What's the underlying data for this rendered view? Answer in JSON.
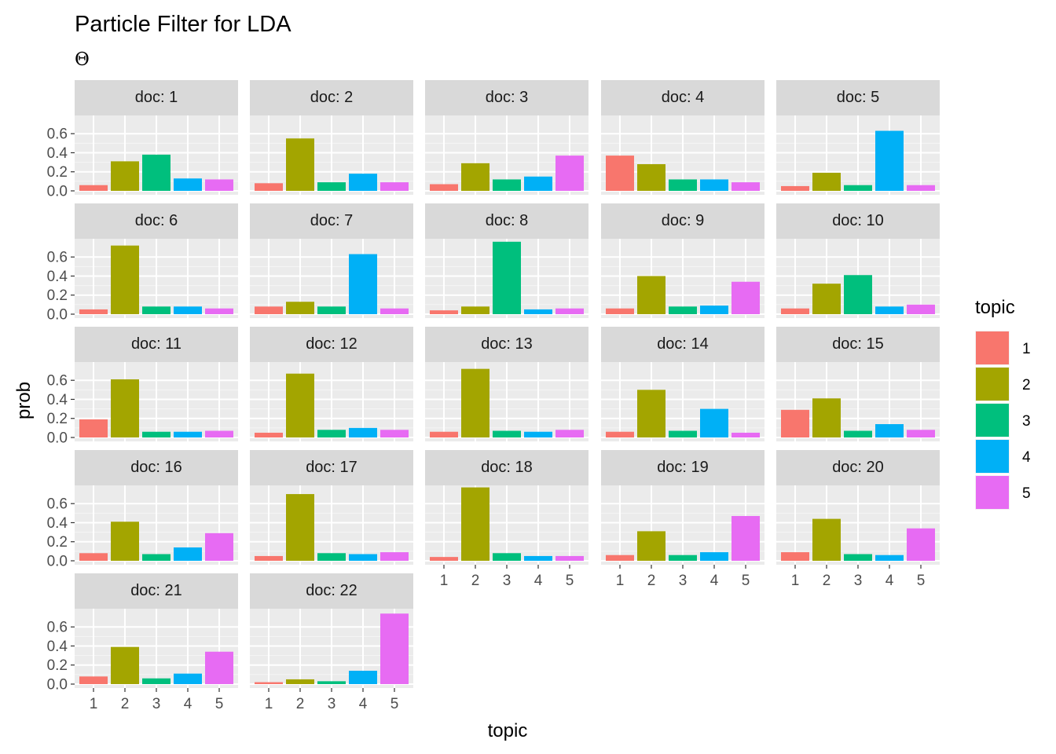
{
  "chart_data": {
    "type": "bar",
    "title": "Particle Filter for LDA",
    "subtitle": "Θ",
    "xlabel": "topic",
    "ylabel": "prob",
    "categories": [
      "1",
      "2",
      "3",
      "4",
      "5"
    ],
    "y_ticks": [
      "0.0",
      "0.2",
      "0.4",
      "0.6"
    ],
    "ylim": [
      0,
      0.75
    ],
    "grid": true,
    "facet_label_prefix": "doc: ",
    "legend": {
      "title": "topic",
      "position": "right",
      "entries": [
        {
          "label": "1",
          "color": "#F8766D"
        },
        {
          "label": "2",
          "color": "#A3A500"
        },
        {
          "label": "3",
          "color": "#00BF7D"
        },
        {
          "label": "4",
          "color": "#00B0F6"
        },
        {
          "label": "5",
          "color": "#E76BF3"
        }
      ]
    },
    "facets": [
      {
        "doc": "1",
        "values": [
          0.06,
          0.31,
          0.38,
          0.13,
          0.12
        ]
      },
      {
        "doc": "2",
        "values": [
          0.08,
          0.55,
          0.09,
          0.18,
          0.09
        ]
      },
      {
        "doc": "3",
        "values": [
          0.07,
          0.29,
          0.12,
          0.15,
          0.37
        ]
      },
      {
        "doc": "4",
        "values": [
          0.37,
          0.28,
          0.12,
          0.12,
          0.09
        ]
      },
      {
        "doc": "5",
        "values": [
          0.05,
          0.19,
          0.06,
          0.63,
          0.06
        ]
      },
      {
        "doc": "6",
        "values": [
          0.05,
          0.72,
          0.08,
          0.08,
          0.06
        ]
      },
      {
        "doc": "7",
        "values": [
          0.08,
          0.13,
          0.08,
          0.63,
          0.06
        ]
      },
      {
        "doc": "8",
        "values": [
          0.04,
          0.08,
          0.76,
          0.05,
          0.06
        ]
      },
      {
        "doc": "9",
        "values": [
          0.06,
          0.4,
          0.08,
          0.09,
          0.34
        ]
      },
      {
        "doc": "10",
        "values": [
          0.06,
          0.32,
          0.41,
          0.08,
          0.1
        ]
      },
      {
        "doc": "11",
        "values": [
          0.19,
          0.61,
          0.06,
          0.06,
          0.07
        ]
      },
      {
        "doc": "12",
        "values": [
          0.05,
          0.67,
          0.08,
          0.1,
          0.08
        ]
      },
      {
        "doc": "13",
        "values": [
          0.06,
          0.72,
          0.07,
          0.06,
          0.08
        ]
      },
      {
        "doc": "14",
        "values": [
          0.06,
          0.5,
          0.07,
          0.3,
          0.05
        ]
      },
      {
        "doc": "15",
        "values": [
          0.29,
          0.41,
          0.07,
          0.14,
          0.08
        ]
      },
      {
        "doc": "16",
        "values": [
          0.08,
          0.41,
          0.07,
          0.14,
          0.29
        ]
      },
      {
        "doc": "17",
        "values": [
          0.05,
          0.7,
          0.08,
          0.07,
          0.09
        ]
      },
      {
        "doc": "18",
        "values": [
          0.04,
          0.77,
          0.08,
          0.05,
          0.05
        ]
      },
      {
        "doc": "19",
        "values": [
          0.06,
          0.31,
          0.06,
          0.09,
          0.47
        ]
      },
      {
        "doc": "20",
        "values": [
          0.09,
          0.44,
          0.07,
          0.06,
          0.34
        ]
      },
      {
        "doc": "21",
        "values": [
          0.08,
          0.39,
          0.06,
          0.11,
          0.34
        ]
      },
      {
        "doc": "22",
        "values": [
          0.02,
          0.05,
          0.03,
          0.14,
          0.74
        ]
      }
    ]
  }
}
